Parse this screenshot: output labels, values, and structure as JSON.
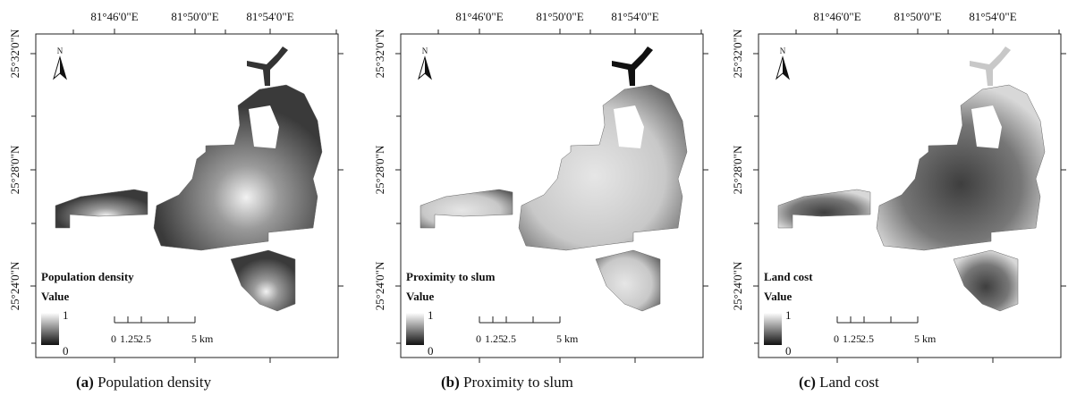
{
  "x_tick_labels": [
    "81°46'0\"E",
    "81°50'0\"E",
    "81°54'0\"E"
  ],
  "y_tick_labels": [
    "25°32'0\"N",
    "25°28'0\"N",
    "25°24'0\"N"
  ],
  "north": "N",
  "scale_labels": [
    "0",
    "1.25",
    "2.5",
    "5 km"
  ],
  "legend_subtitle": "Value",
  "legend_max": "1",
  "legend_min": "0",
  "panels": [
    {
      "letter": "(a)",
      "caption": "Population density",
      "legend_title": "Population density"
    },
    {
      "letter": "(b)",
      "caption": "Proximity to slum",
      "legend_title": "Proximity to slum"
    },
    {
      "letter": "(c)",
      "caption": "Land cost",
      "legend_title": "Land cost"
    }
  ]
}
